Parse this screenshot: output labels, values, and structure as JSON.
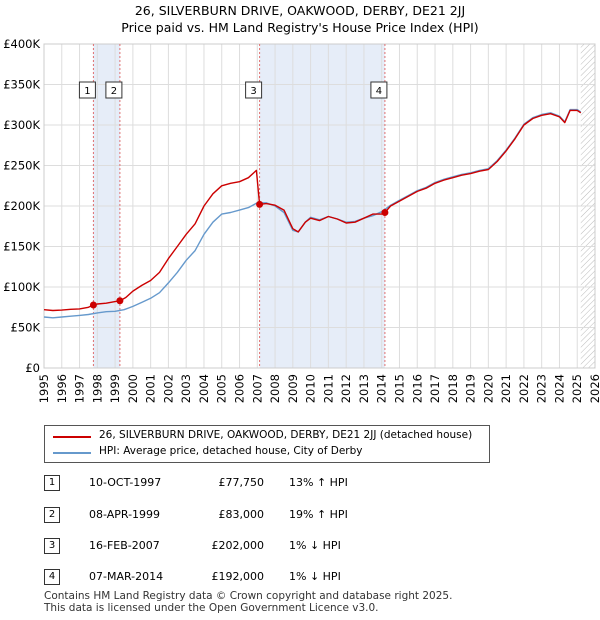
{
  "title_line1": "26, SILVERBURN DRIVE, OAKWOOD, DERBY, DE21 2JJ",
  "title_line2": "Price paid vs. HM Land Registry's House Price Index (HPI)",
  "legend": {
    "property": "26, SILVERBURN DRIVE, OAKWOOD, DERBY, DE21 2JJ (detached house)",
    "hpi": "HPI: Average price, detached house, City of Derby"
  },
  "colors": {
    "property": "#cc0000",
    "hpi": "#6699cc",
    "band": "#dce6f5",
    "grid": "#dddddd",
    "marker_line": "#e07070"
  },
  "transactions": [
    {
      "num": "1",
      "date": "10-OCT-1997",
      "price": "£77,750",
      "hpi": "13% ↑ HPI"
    },
    {
      "num": "2",
      "date": "08-APR-1999",
      "price": "£83,000",
      "hpi": "19% ↑ HPI"
    },
    {
      "num": "3",
      "date": "16-FEB-2007",
      "price": "£202,000",
      "hpi": "1% ↓ HPI"
    },
    {
      "num": "4",
      "date": "07-MAR-2014",
      "price": "£192,000",
      "hpi": "1% ↓ HPI"
    }
  ],
  "footer_line1": "Contains HM Land Registry data © Crown copyright and database right 2025.",
  "footer_line2": "This data is licensed under the Open Government Licence v3.0.",
  "chart_data": {
    "type": "line",
    "title": "26, SILVERBURN DRIVE, OAKWOOD, DERBY, DE21 2JJ — Price paid vs. HM Land Registry's House Price Index (HPI)",
    "xlabel": "",
    "ylabel": "",
    "xlim": [
      1995,
      2026
    ],
    "ylim": [
      0,
      400000
    ],
    "y_ticks": [
      0,
      50000,
      100000,
      150000,
      200000,
      250000,
      300000,
      350000,
      400000
    ],
    "y_tick_labels": [
      "£0",
      "£50K",
      "£100K",
      "£150K",
      "£200K",
      "£250K",
      "£300K",
      "£350K",
      "£400K"
    ],
    "x_ticks": [
      1995,
      1996,
      1997,
      1998,
      1999,
      2000,
      2001,
      2002,
      2003,
      2004,
      2005,
      2006,
      2007,
      2008,
      2009,
      2010,
      2011,
      2012,
      2013,
      2014,
      2015,
      2016,
      2017,
      2018,
      2019,
      2020,
      2021,
      2022,
      2023,
      2024,
      2025,
      2026
    ],
    "grid": true,
    "shaded_ranges": [
      [
        1997.78,
        1999.27
      ],
      [
        2007.13,
        2014.18
      ]
    ],
    "future_hatch_from": 2025.2,
    "sales": [
      {
        "label": "1",
        "x": 1997.78,
        "y": 77750
      },
      {
        "label": "2",
        "x": 1999.27,
        "y": 83000
      },
      {
        "label": "3",
        "x": 2007.13,
        "y": 202000
      },
      {
        "label": "4",
        "x": 2014.18,
        "y": 192000
      }
    ],
    "series": [
      {
        "name": "26, SILVERBURN DRIVE, OAKWOOD, DERBY, DE21 2JJ (detached house)",
        "x": [
          1995,
          1995.5,
          1996,
          1996.5,
          1997,
          1997.5,
          1997.78,
          1998,
          1998.5,
          1999,
          1999.27,
          1999.6,
          2000,
          2000.5,
          2001,
          2001.5,
          2002,
          2002.5,
          2003,
          2003.5,
          2004,
          2004.5,
          2005,
          2005.5,
          2006,
          2006.5,
          2006.95,
          2007.13,
          2007.5,
          2008,
          2008.5,
          2009,
          2009.3,
          2009.7,
          2010,
          2010.5,
          2011,
          2011.5,
          2012,
          2012.5,
          2013,
          2013.5,
          2014,
          2014.18,
          2014.5,
          2015,
          2015.5,
          2016,
          2016.5,
          2017,
          2017.5,
          2018,
          2018.5,
          2019,
          2019.5,
          2020,
          2020.5,
          2021,
          2021.5,
          2022,
          2022.5,
          2023,
          2023.5,
          2024,
          2024.3,
          2024.6,
          2025,
          2025.2
        ],
        "values": [
          72000,
          71000,
          71500,
          72500,
          73000,
          75000,
          77750,
          79000,
          80000,
          82000,
          83000,
          87000,
          95000,
          102000,
          108000,
          118000,
          135000,
          150000,
          165000,
          178000,
          200000,
          215000,
          225000,
          228000,
          230000,
          235000,
          244000,
          202000,
          203000,
          201000,
          195000,
          172000,
          168000,
          180000,
          185000,
          182000,
          187000,
          184000,
          179000,
          180000,
          185000,
          190000,
          190000,
          192000,
          200000,
          206000,
          212000,
          218000,
          222000,
          228000,
          232000,
          235000,
          238000,
          240000,
          243000,
          245000,
          255000,
          268000,
          283000,
          300000,
          308000,
          312000,
          314000,
          310000,
          303000,
          318000,
          318000,
          315000
        ]
      },
      {
        "name": "HPI: Average price, detached house, City of Derby",
        "x": [
          1995,
          1995.5,
          1996,
          1996.5,
          1997,
          1997.5,
          1998,
          1998.5,
          1999,
          1999.5,
          2000,
          2000.5,
          2001,
          2001.5,
          2002,
          2002.5,
          2003,
          2003.5,
          2004,
          2004.5,
          2005,
          2005.5,
          2006,
          2006.5,
          2007,
          2007.5,
          2008,
          2008.5,
          2009,
          2009.3,
          2009.7,
          2010,
          2010.5,
          2011,
          2011.5,
          2012,
          2012.5,
          2013,
          2013.5,
          2014,
          2014.5,
          2015,
          2015.5,
          2016,
          2016.5,
          2017,
          2017.5,
          2018,
          2018.5,
          2019,
          2019.5,
          2020,
          2020.5,
          2021,
          2021.5,
          2022,
          2022.5,
          2023,
          2023.5,
          2024,
          2024.3,
          2024.6,
          2025,
          2025.2
        ],
        "values": [
          63000,
          62000,
          63000,
          64000,
          65000,
          66000,
          68000,
          69500,
          70000,
          72000,
          76000,
          81000,
          86000,
          93000,
          105000,
          118000,
          133000,
          145000,
          165000,
          180000,
          190000,
          192000,
          195000,
          198000,
          204000,
          204000,
          200000,
          192000,
          170000,
          168000,
          180000,
          186000,
          183000,
          187000,
          184000,
          180000,
          181000,
          185000,
          188000,
          193000,
          201000,
          207000,
          213000,
          219000,
          223000,
          229000,
          233000,
          236000,
          239000,
          241000,
          244000,
          246000,
          256000,
          269000,
          284000,
          301000,
          309000,
          313000,
          315000,
          311000,
          304000,
          319000,
          319000,
          316000
        ]
      }
    ]
  }
}
